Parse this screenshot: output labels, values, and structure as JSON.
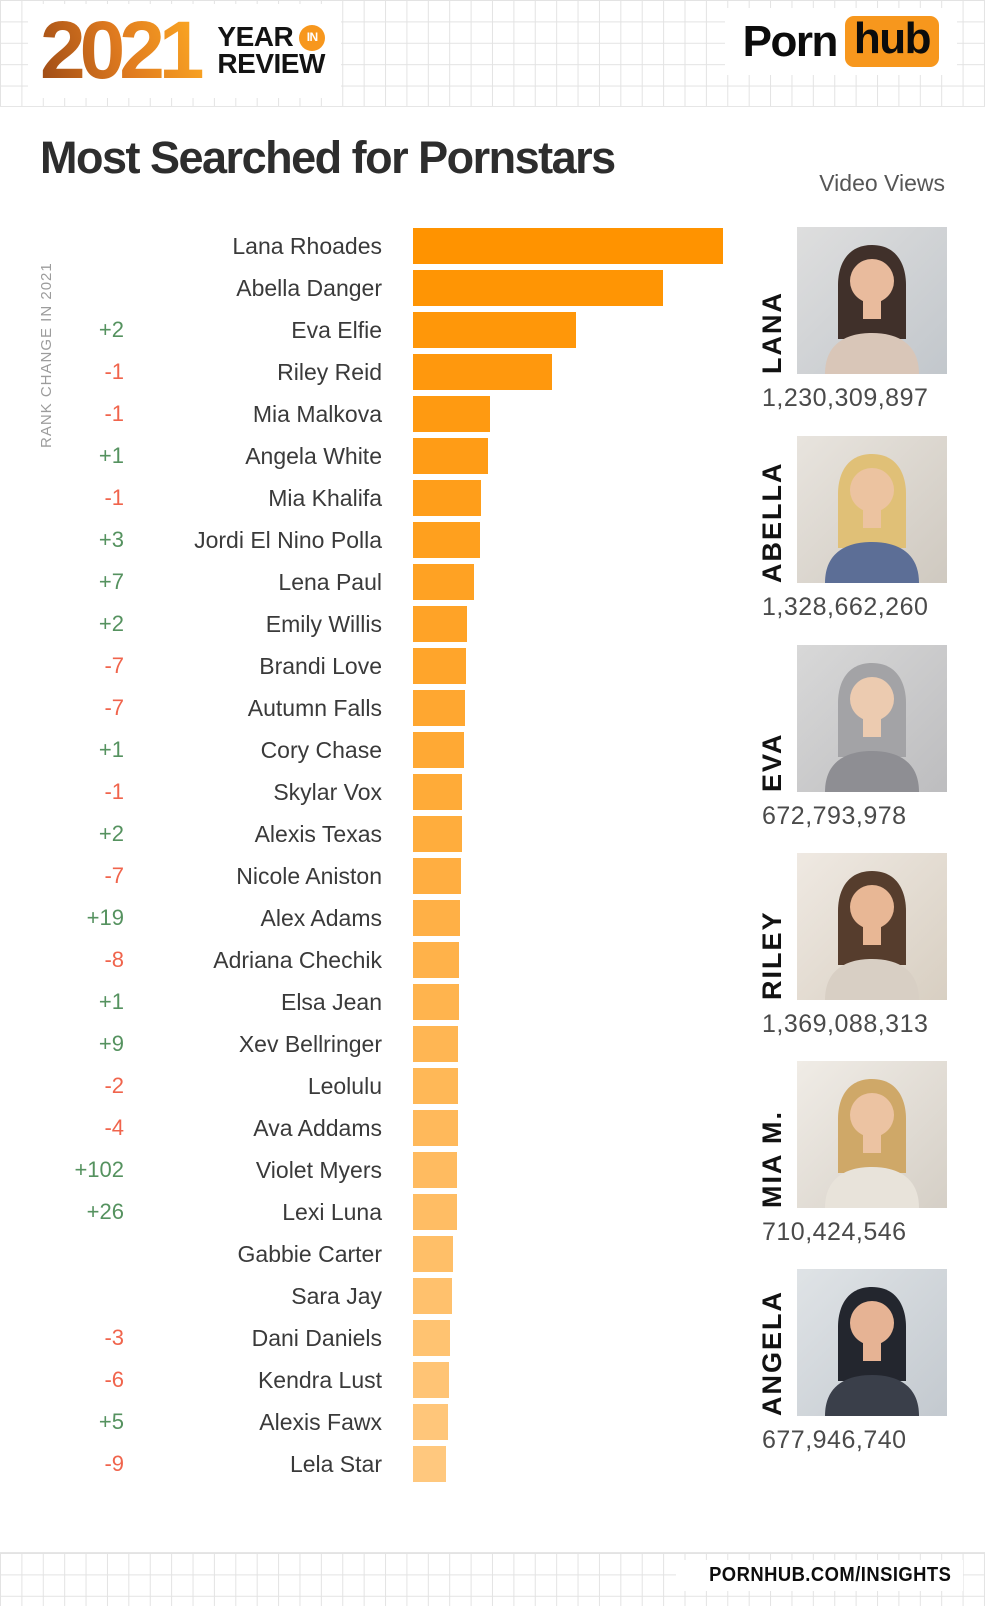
{
  "header": {
    "year": "2021",
    "lockup_line1": "YEAR",
    "lockup_badge": "IN",
    "lockup_line2": "REVIEW",
    "brand_part1": "Porn",
    "brand_part2": "hub"
  },
  "title": "Most Searched for Pornstars",
  "axis": {
    "left_label": "RANK CHANGE IN 2021",
    "right_header": "Video Views"
  },
  "footer": {
    "label": "PORNHUB.COM/INSIGHTS"
  },
  "colors": {
    "brand_orange": "#F7971D",
    "bar_top": "#FF9300",
    "bar_bottom": "#FFC87E",
    "rank_up": "#55925F",
    "rank_down": "#F0644C",
    "year_gradient_start": "#9C4A16",
    "year_gradient_mid": "#E07B1F",
    "year_gradient_end": "#FFAD24"
  },
  "chart_data": {
    "type": "bar",
    "orientation": "horizontal",
    "title": "Most Searched for Pornstars",
    "xlabel": "relative search volume (unlabeled axis, bar length in px)",
    "ylabel": "pornstar",
    "grid": false,
    "legend": false,
    "categories": [
      "Lana Rhoades",
      "Abella Danger",
      "Eva Elfie",
      "Riley Reid",
      "Mia Malkova",
      "Angela White",
      "Mia Khalifa",
      "Jordi El Nino Polla",
      "Lena Paul",
      "Emily Willis",
      "Brandi Love",
      "Autumn Falls",
      "Cory Chase",
      "Skylar Vox",
      "Alexis Texas",
      "Nicole Aniston",
      "Alex Adams",
      "Adriana Chechik",
      "Elsa Jean",
      "Xev Bellringer",
      "Leolulu",
      "Ava Addams",
      "Violet Myers",
      "Lexi Luna",
      "Gabbie Carter",
      "Sara Jay",
      "Dani Daniels",
      "Kendra Lust",
      "Alexis Fawx",
      "Lela Star"
    ],
    "values": [
      310,
      250,
      163,
      139,
      77,
      75,
      68,
      67,
      61,
      54,
      53,
      52,
      51,
      49,
      48.5,
      48,
      46.5,
      46,
      45.5,
      45.3,
      45,
      44.5,
      44,
      43.5,
      40,
      38.5,
      37,
      36,
      35,
      33
    ],
    "xlim": [
      0,
      310
    ],
    "rank_changes": [
      "",
      "",
      "+2",
      "-1",
      "-1",
      "+1",
      "-1",
      "+3",
      "+7",
      "+2",
      "-7",
      "-7",
      "+1",
      "-1",
      "+2",
      "-7",
      "+19",
      "-8",
      "+1",
      "+9",
      "-2",
      "-4",
      "+102",
      "+26",
      "",
      "",
      "-3",
      "-6",
      "+5",
      "-9"
    ]
  },
  "video_views": [
    {
      "label": "LANA",
      "views": "1,230,309,897",
      "hair": "#40302a",
      "skin": "#e9bb9d",
      "shirt": "#d9c6b8",
      "bg1": "#dedede",
      "bg2": "#c2c7cc"
    },
    {
      "label": "ABELLA",
      "views": "1,328,662,260",
      "hair": "#e0c077",
      "skin": "#ecc3a0",
      "shirt": "#5c6e96",
      "bg1": "#e8e4de",
      "bg2": "#cfc9c0"
    },
    {
      "label": "EVA",
      "views": "672,793,978",
      "hair": "#a3a3a6",
      "skin": "#eccbb0",
      "shirt": "#8e8e93",
      "bg1": "#d8d8d8",
      "bg2": "#bdbdbf"
    },
    {
      "label": "RILEY",
      "views": "1,369,088,313",
      "hair": "#563d2d",
      "skin": "#e8b795",
      "shirt": "#d8cfc4",
      "bg1": "#efe9e2",
      "bg2": "#d8cfc2"
    },
    {
      "label": "MIA M.",
      "views": "710,424,546",
      "hair": "#cfa868",
      "skin": "#ecc3a2",
      "shirt": "#e8e3da",
      "bg1": "#f0ece6",
      "bg2": "#d5cfc6"
    },
    {
      "label": "ANGELA",
      "views": "677,946,740",
      "hair": "#23262e",
      "skin": "#e6b394",
      "shirt": "#3a3f4a",
      "bg1": "#dfe3e6",
      "bg2": "#c3c9cf"
    }
  ]
}
